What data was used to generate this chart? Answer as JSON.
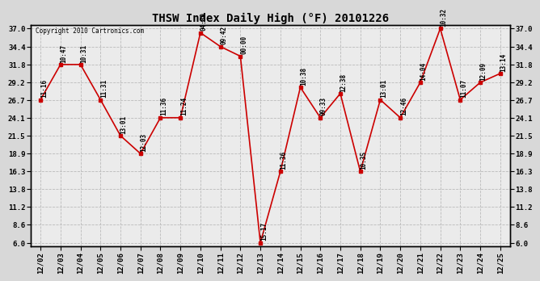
{
  "title": "THSW Index Daily High (°F) 20101226",
  "copyright": "Copyright 2010 Cartronics.com",
  "x_labels": [
    "12/02",
    "12/03",
    "12/04",
    "12/05",
    "12/06",
    "12/07",
    "12/08",
    "12/09",
    "12/10",
    "12/11",
    "12/12",
    "12/13",
    "12/14",
    "12/15",
    "12/16",
    "12/17",
    "12/18",
    "12/19",
    "12/20",
    "12/21",
    "12/22",
    "12/23",
    "12/24",
    "12/25"
  ],
  "y_values": [
    26.7,
    31.8,
    31.8,
    26.7,
    21.5,
    18.9,
    24.1,
    24.1,
    36.4,
    34.4,
    33.0,
    6.0,
    16.3,
    28.5,
    24.1,
    27.6,
    16.3,
    26.7,
    24.1,
    29.2,
    37.0,
    26.7,
    29.2,
    30.5
  ],
  "point_labels": [
    "11:16",
    "10:47",
    "10:31",
    "11:31",
    "13:01",
    "12:03",
    "11:36",
    "11:24",
    "04:39",
    "09:42",
    "00:00",
    "15:17",
    "11:36",
    "10:38",
    "09:33",
    "12:38",
    "10:35",
    "13:01",
    "12:46",
    "14:04",
    "10:32",
    "11:07",
    "12:09",
    "13:14"
  ],
  "y_ticks": [
    6.0,
    8.6,
    11.2,
    13.8,
    16.3,
    18.9,
    21.5,
    24.1,
    26.7,
    29.2,
    31.8,
    34.4,
    37.0
  ],
  "y_min": 6.0,
  "y_max": 37.0,
  "line_color": "#cc0000",
  "marker_color": "#cc0000",
  "bg_color": "#d8d8d8",
  "plot_bg_color": "#ebebeb",
  "grid_color": "#bbbbbb",
  "title_fontsize": 10,
  "label_fontsize": 5.5,
  "tick_fontsize": 6.5,
  "copyright_fontsize": 5.5
}
